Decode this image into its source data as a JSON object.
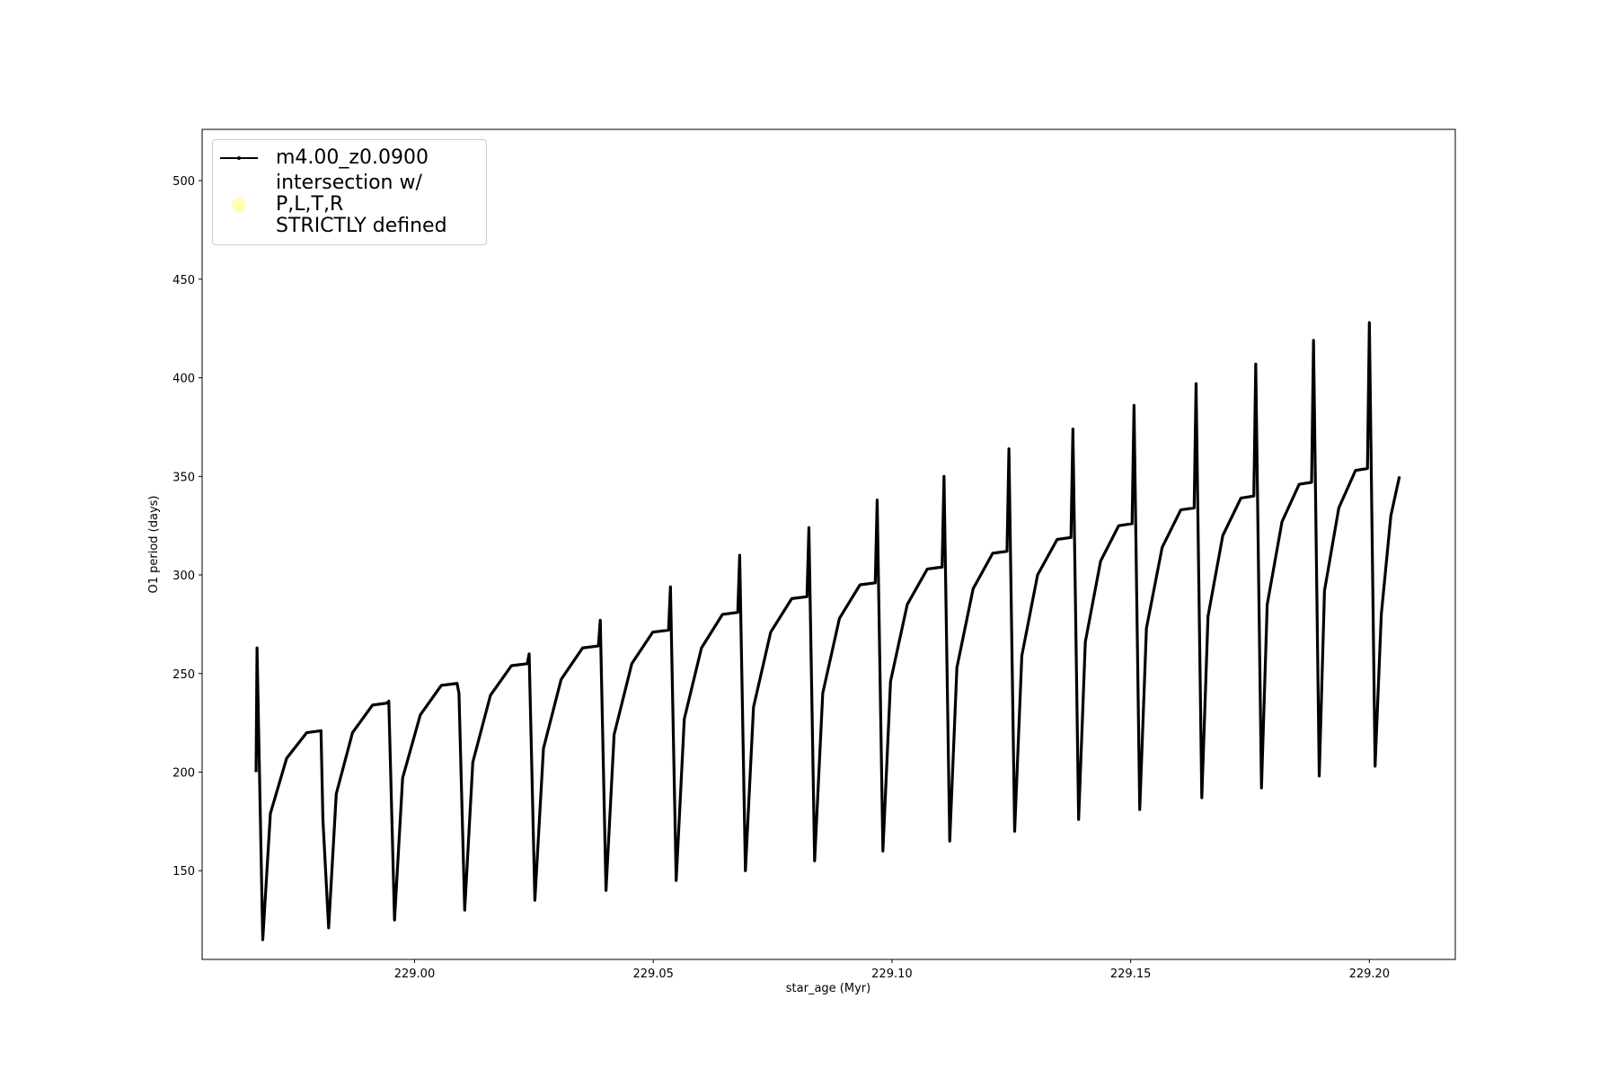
{
  "chart_data": {
    "type": "line",
    "xlabel": "star_age (Myr)",
    "ylabel": "O1 period (days)",
    "xlim": [
      228.9555,
      229.218
    ],
    "ylim": [
      105,
      526
    ],
    "xticks": [
      {
        "value": 229.0,
        "label": "229.00"
      },
      {
        "value": 229.05,
        "label": "229.05"
      },
      {
        "value": 229.1,
        "label": "229.10"
      },
      {
        "value": 229.15,
        "label": "229.15"
      },
      {
        "value": 229.2,
        "label": "229.20"
      }
    ],
    "yticks": [
      150,
      200,
      250,
      300,
      350,
      400,
      450,
      500
    ],
    "legend": "upper left",
    "series": [
      {
        "name": "m4.00_z0.0900",
        "color": "#000000",
        "x": [
          228.9668,
          228.967,
          228.9682,
          228.9698,
          228.9732,
          228.9774,
          228.9804,
          228.9808,
          228.982,
          228.9836,
          228.987,
          228.9912,
          228.9942,
          228.9946,
          228.9958,
          228.9975,
          229.0012,
          229.0056,
          229.0089,
          229.0093,
          229.0105,
          229.0122,
          229.0159,
          229.0203,
          229.0236,
          229.024,
          229.0252,
          229.027,
          229.0307,
          229.0352,
          229.0385,
          229.0389,
          229.0401,
          229.0418,
          229.0455,
          229.0499,
          229.0532,
          229.0536,
          229.0548,
          229.0565,
          229.0601,
          229.0645,
          229.0677,
          229.0681,
          229.0693,
          229.071,
          229.0746,
          229.079,
          229.0822,
          229.0826,
          229.0838,
          229.0855,
          229.089,
          229.0933,
          229.0965,
          229.0969,
          229.0981,
          229.0997,
          229.1032,
          229.1074,
          229.1105,
          229.1109,
          229.1121,
          229.1136,
          229.117,
          229.1211,
          229.1241,
          229.1245,
          229.1257,
          229.1272,
          229.1305,
          229.1346,
          229.1375,
          229.1379,
          229.1391,
          229.1405,
          229.1437,
          229.1475,
          229.1503,
          229.1507,
          229.1519,
          229.1533,
          229.1566,
          229.1605,
          229.1633,
          229.1637,
          229.1649,
          229.1662,
          229.1693,
          229.1731,
          229.1758,
          229.1762,
          229.1774,
          229.1786,
          229.1817,
          229.1853,
          229.1879,
          229.1883,
          229.1895,
          229.1906,
          229.1936,
          229.1971,
          229.1996,
          229.2,
          229.2012,
          229.2025,
          229.2045,
          229.2063
        ],
        "values": [
          200,
          263,
          115,
          179,
          207,
          220,
          221,
          176,
          121,
          189,
          220,
          234,
          235,
          236,
          125,
          197,
          229,
          244,
          245,
          240,
          130,
          205,
          239,
          254,
          255,
          260,
          135,
          212,
          247,
          263,
          264,
          277,
          140,
          219,
          255,
          271,
          272,
          294,
          145,
          227,
          263,
          280,
          281,
          310,
          150,
          233,
          271,
          288,
          289,
          324,
          155,
          240,
          278,
          295,
          296,
          338,
          160,
          246,
          285,
          303,
          304,
          350,
          165,
          253,
          293,
          311,
          312,
          364,
          170,
          259,
          300,
          318,
          319,
          374,
          176,
          266,
          307,
          325,
          326,
          386,
          181,
          273,
          314,
          333,
          334,
          397,
          187,
          279,
          320,
          339,
          340,
          407,
          192,
          285,
          327,
          346,
          347,
          419,
          198,
          292,
          334,
          353,
          354,
          428,
          203,
          280,
          330,
          350
        ]
      },
      {
        "name": "intersection w/ P,L,T,R\nSTRICTLY defined",
        "color": "#ffffb3",
        "type": "scatter",
        "x": [],
        "values": []
      }
    ]
  }
}
